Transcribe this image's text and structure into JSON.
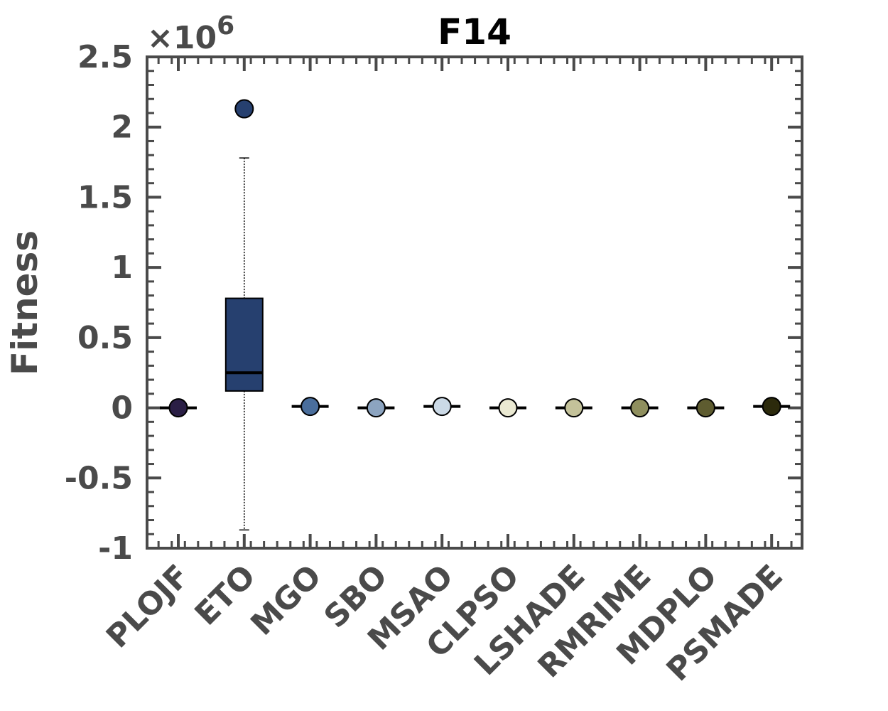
{
  "chart_data": {
    "type": "box",
    "title": "F14",
    "xlabel": "",
    "ylabel": "Fitness",
    "y_scale_label": "×10",
    "y_scale_exponent": "6",
    "ylim": [
      -1,
      2.5
    ],
    "yticks": [
      2.5,
      2,
      1.5,
      1,
      0.5,
      0,
      -0.5,
      -1
    ],
    "ytick_labels": [
      "2.5",
      "2",
      "1.5",
      "1",
      "0.5",
      "0",
      "-0.5",
      "-1"
    ],
    "grid": false,
    "categories": [
      "PLOJF",
      "ETO",
      "MGO",
      "SBO",
      "MSAO",
      "CLPSO",
      "LSHADE",
      "RMRIME",
      "MDPLO",
      "PSMADE"
    ],
    "colors": [
      "#2a1e45",
      "#26406f",
      "#4a6e9c",
      "#8ca4c0",
      "#cbd9e6",
      "#eae9d2",
      "#c4c29a",
      "#8f8f5e",
      "#5e5c30",
      "#2c2a0c"
    ],
    "boxes": [
      {
        "name": "PLOJF",
        "min": 0,
        "q1": 0,
        "median": 0,
        "q3": 0,
        "max": 0,
        "outliers": [
          0
        ]
      },
      {
        "name": "ETO",
        "min": -0.87,
        "q1": 0.12,
        "median": 0.25,
        "q3": 0.78,
        "max": 1.78,
        "outliers": [
          2.13
        ]
      },
      {
        "name": "MGO",
        "min": 0.01,
        "q1": 0.01,
        "median": 0.01,
        "q3": 0.01,
        "max": 0.01,
        "outliers": [
          0.01
        ]
      },
      {
        "name": "SBO",
        "min": 0,
        "q1": 0,
        "median": 0,
        "q3": 0,
        "max": 0,
        "outliers": [
          0
        ]
      },
      {
        "name": "MSAO",
        "min": 0.01,
        "q1": 0.01,
        "median": 0.01,
        "q3": 0.01,
        "max": 0.01,
        "outliers": [
          0.01
        ]
      },
      {
        "name": "CLPSO",
        "min": 0,
        "q1": 0,
        "median": 0,
        "q3": 0,
        "max": 0,
        "outliers": [
          0
        ]
      },
      {
        "name": "LSHADE",
        "min": 0,
        "q1": 0,
        "median": 0,
        "q3": 0,
        "max": 0,
        "outliers": [
          0
        ]
      },
      {
        "name": "RMRIME",
        "min": 0,
        "q1": 0,
        "median": 0,
        "q3": 0,
        "max": 0,
        "outliers": [
          0
        ]
      },
      {
        "name": "MDPLO",
        "min": 0,
        "q1": 0,
        "median": 0,
        "q3": 0,
        "max": 0,
        "outliers": [
          0
        ]
      },
      {
        "name": "PSMADE",
        "min": 0.01,
        "q1": 0.01,
        "median": 0.01,
        "q3": 0.01,
        "max": 0.01,
        "outliers": [
          0.01
        ]
      }
    ]
  }
}
